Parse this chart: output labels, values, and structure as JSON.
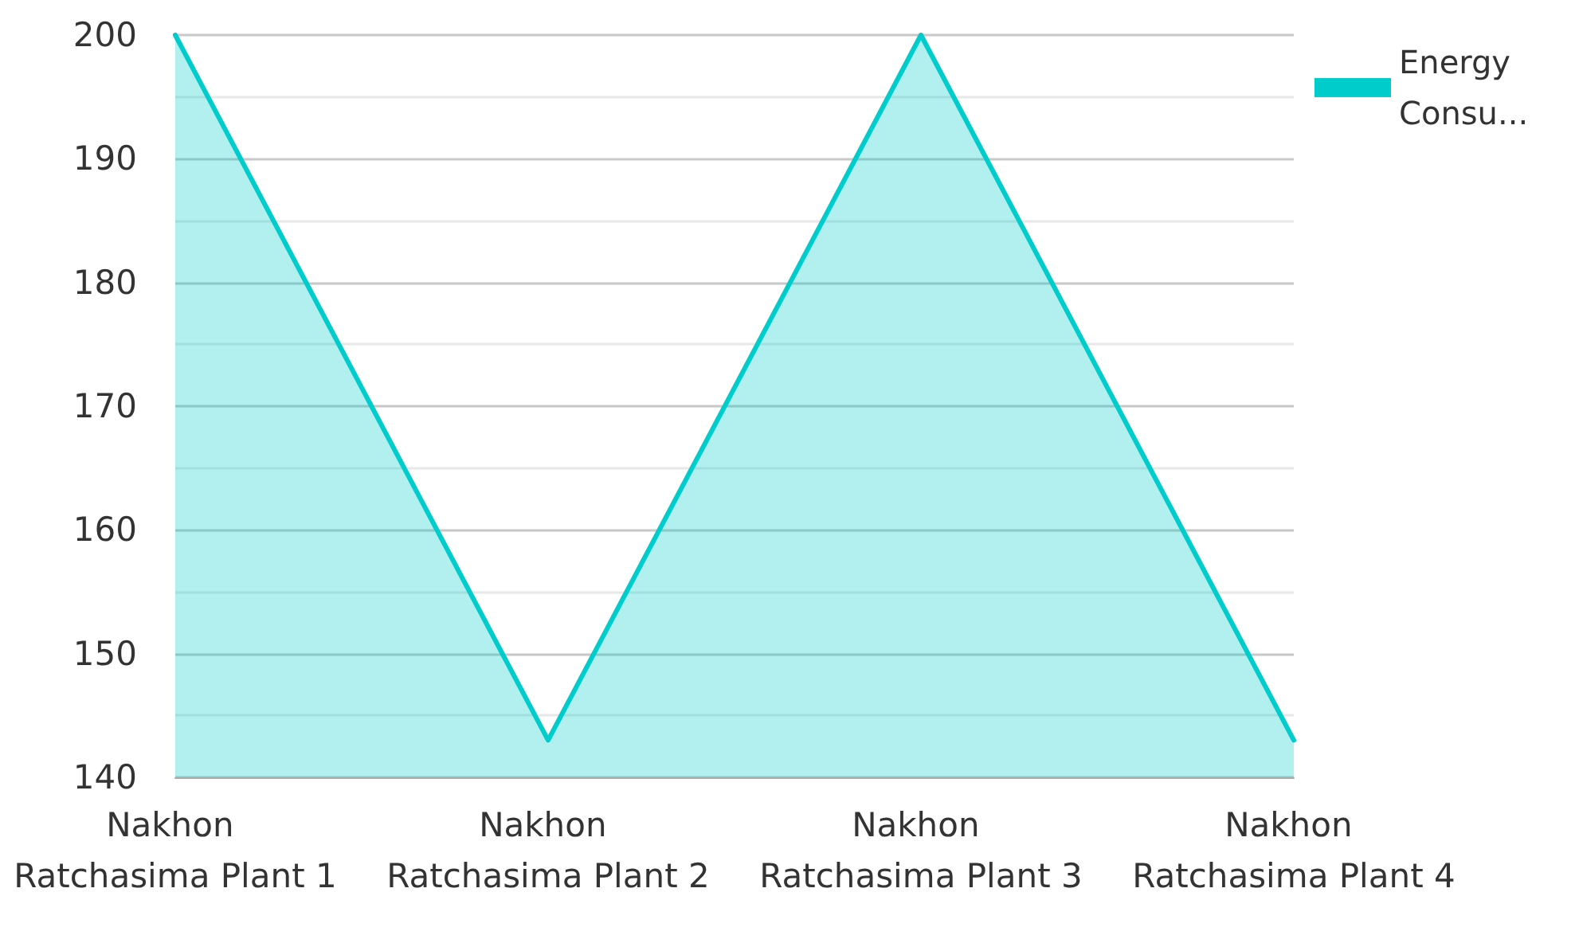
{
  "chart_data": {
    "type": "area",
    "categories": [
      "Nakhon Ratchasima Plant 1",
      "Nakhon Ratchasima Plant 2",
      "Nakhon Ratchasima Plant 3",
      "Nakhon Ratchasima Plant 4"
    ],
    "series": [
      {
        "name": "Energy Consu...",
        "color": "#00cccc",
        "values": [
          200,
          143,
          200,
          143
        ]
      }
    ],
    "ylim": [
      140,
      200
    ],
    "yticks": [
      140,
      150,
      160,
      170,
      180,
      190,
      200
    ],
    "grid": "y",
    "legend": "top right",
    "marker": "none",
    "line_style": "solid"
  }
}
